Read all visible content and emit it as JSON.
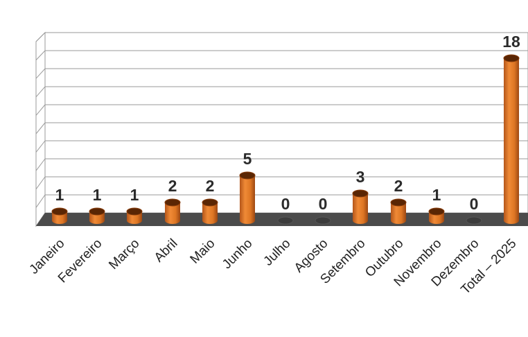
{
  "chart_data": {
    "type": "bar",
    "style": "3d-cylinder",
    "categories": [
      "Janeiro",
      "Fevereiro",
      "Março",
      "Abril",
      "Maio",
      "Junho",
      "Julho",
      "Agosto",
      "Setembro",
      "Outubro",
      "Novembro",
      "Dezembro",
      "Total – 2025"
    ],
    "values": [
      1,
      1,
      1,
      2,
      2,
      5,
      0,
      0,
      3,
      2,
      1,
      0,
      18
    ],
    "ylim": [
      0,
      20
    ],
    "grid": true,
    "colors": {
      "bar": "#e07a26",
      "bar_dark": "#7a3609",
      "bar_top": "#5a2604",
      "floor": "#4b4b4b",
      "grid": "#9a9a9a"
    }
  }
}
